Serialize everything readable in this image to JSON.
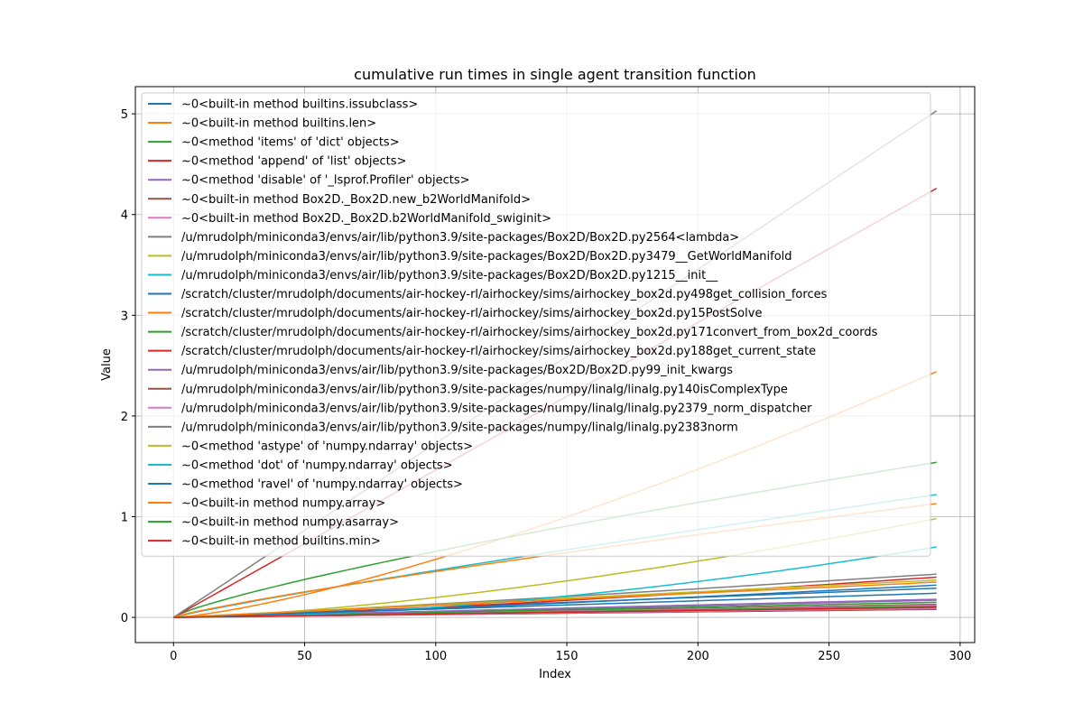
{
  "chart_data": {
    "type": "line",
    "title": "cumulative run times in single agent transition function",
    "xlabel": "Index",
    "ylabel": "Value",
    "xlim": [
      -14.55,
      305.55
    ],
    "ylim": [
      -0.25,
      5.27
    ],
    "xticks": [
      0,
      50,
      100,
      150,
      200,
      250,
      300
    ],
    "yticks": [
      0,
      1,
      2,
      3,
      4,
      5
    ],
    "grid": true,
    "legend": "upper left",
    "series": [
      {
        "name": "~0<built-in method builtins.issubclass>",
        "color": "#1f77b4",
        "end": 0.29,
        "curve": 1.0
      },
      {
        "name": "~0<built-in method builtins.len>",
        "color": "#ff7f0e",
        "end": 2.44,
        "curve": 1.35
      },
      {
        "name": "~0<method 'items' of 'dict' objects>",
        "color": "#2ca02c",
        "end": 1.54,
        "curve": 0.8
      },
      {
        "name": "~0<method 'append' of 'list' objects>",
        "color": "#d62728",
        "end": 4.26,
        "curve": 1.0
      },
      {
        "name": "~0<method 'disable' of '_lsprof.Profiler' objects>",
        "color": "#9467bd",
        "end": 0.17,
        "curve": 1.0
      },
      {
        "name": "~0<built-in method Box2D._Box2D.new_b2WorldManifold>",
        "color": "#8c564b",
        "end": 0.13,
        "curve": 1.0
      },
      {
        "name": "~0<built-in method Box2D._Box2D.b2WorldManifold_swiginit>",
        "color": "#e377c2",
        "end": 0.12,
        "curve": 1.0
      },
      {
        "name": "/u/mrudolph/miniconda3/envs/air/lib/python3.9/site-packages/Box2D/Box2D.py2564<lambda>",
        "color": "#7f7f7f",
        "end": 5.03,
        "curve": 1.0
      },
      {
        "name": "/u/mrudolph/miniconda3/envs/air/lib/python3.9/site-packages/Box2D/Box2D.py3479__GetWorldManifold",
        "color": "#bcbd22",
        "end": 0.98,
        "curve": 1.5
      },
      {
        "name": "/u/mrudolph/miniconda3/envs/air/lib/python3.9/site-packages/Box2D/Box2D.py1215__init__",
        "color": "#17becf",
        "end": 1.22,
        "curve": 0.9
      },
      {
        "name": "/scratch/cluster/mrudolph/documents/air-hockey-rl/airhockey/sims/airhockey_box2d.py498get_collision_forces",
        "color": "#1f77b4",
        "end": 0.32,
        "curve": 1.2
      },
      {
        "name": "/scratch/cluster/mrudolph/documents/air-hockey-rl/airhockey/sims/airhockey_box2d.py15PostSolve",
        "color": "#ff7f0e",
        "end": 1.13,
        "curve": 0.85
      },
      {
        "name": "/scratch/cluster/mrudolph/documents/air-hockey-rl/airhockey/sims/airhockey_box2d.py171convert_from_box2d_coords",
        "color": "#2ca02c",
        "end": 0.15,
        "curve": 1.0
      },
      {
        "name": "/scratch/cluster/mrudolph/documents/air-hockey-rl/airhockey/sims/airhockey_box2d.py188get_current_state",
        "color": "#d62728",
        "end": 0.4,
        "curve": 1.3
      },
      {
        "name": "/u/mrudolph/miniconda3/envs/air/lib/python3.9/site-packages/Box2D/Box2D.py99_init_kwargs",
        "color": "#9467bd",
        "end": 0.18,
        "curve": 1.0
      },
      {
        "name": "/u/mrudolph/miniconda3/envs/air/lib/python3.9/site-packages/numpy/linalg/linalg.py140isComplexType",
        "color": "#8c564b",
        "end": 0.08,
        "curve": 1.0
      },
      {
        "name": "/u/mrudolph/miniconda3/envs/air/lib/python3.9/site-packages/numpy/linalg/linalg.py2379_norm_dispatcher",
        "color": "#e377c2",
        "end": 0.09,
        "curve": 1.0
      },
      {
        "name": "/u/mrudolph/miniconda3/envs/air/lib/python3.9/site-packages/numpy/linalg/linalg.py2383norm",
        "color": "#7f7f7f",
        "end": 0.43,
        "curve": 1.1
      },
      {
        "name": "~0<method 'astype' of 'numpy.ndarray' objects>",
        "color": "#bcbd22",
        "end": 0.37,
        "curve": 1.0
      },
      {
        "name": "~0<method 'dot' of 'numpy.ndarray' objects>",
        "color": "#17becf",
        "end": 0.7,
        "curve": 1.8
      },
      {
        "name": "~0<method 'ravel' of 'numpy.ndarray' objects>",
        "color": "#1f77b4",
        "end": 0.24,
        "curve": 1.0
      },
      {
        "name": "~0<built-in method numpy.array>",
        "color": "#ff7f0e",
        "end": 0.35,
        "curve": 1.0
      },
      {
        "name": "~0<built-in method numpy.asarray>",
        "color": "#2ca02c",
        "end": 0.11,
        "curve": 1.0
      },
      {
        "name": "~0<built-in method builtins.min>",
        "color": "#d62728",
        "end": 0.1,
        "curve": 1.0
      }
    ]
  }
}
